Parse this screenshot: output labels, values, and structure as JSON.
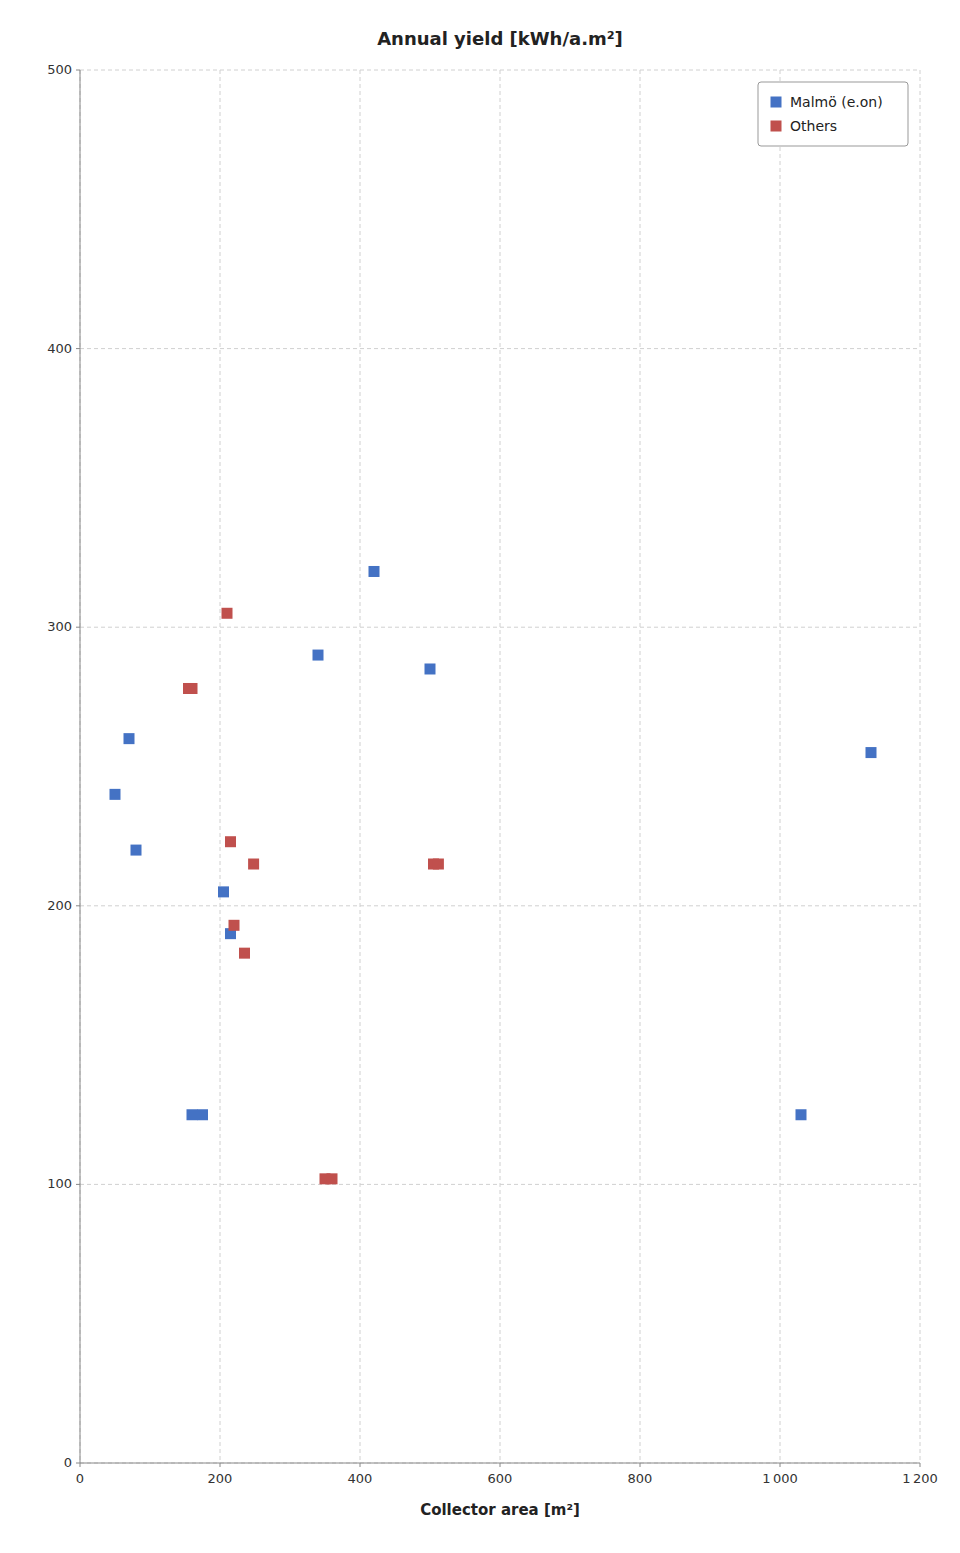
{
  "chart_data": {
    "type": "scatter",
    "title": "Annual yield [kWh/a.m²]",
    "x_label": "Collector area [m²]",
    "xlim": [
      0,
      1200
    ],
    "ylim": [
      0,
      500
    ],
    "xticks": [
      0,
      200,
      400,
      600,
      800,
      {
        "value": 1000,
        "label": "1 000"
      },
      {
        "value": 1200,
        "label": "1 200"
      }
    ],
    "yticks": [
      0,
      100,
      200,
      300,
      400,
      500
    ],
    "grid": true,
    "legend": "upper right",
    "series": [
      {
        "name": "Malmö (e.on)",
        "color": "#4472C4",
        "marker": "square",
        "x": [
          50,
          70,
          80,
          160,
          175,
          205,
          215,
          340,
          420,
          500,
          1030,
          1130
        ],
        "values": [
          240,
          260,
          220,
          125,
          125,
          205,
          190,
          290,
          320,
          285,
          125,
          255
        ]
      },
      {
        "name": "Others",
        "color": "#C0504D",
        "marker": "square",
        "x": [
          155,
          160,
          210,
          215,
          220,
          235,
          248,
          350,
          360,
          505,
          512
        ],
        "values": [
          278,
          278,
          305,
          223,
          193,
          183,
          215,
          102,
          102,
          215,
          215
        ]
      }
    ]
  }
}
